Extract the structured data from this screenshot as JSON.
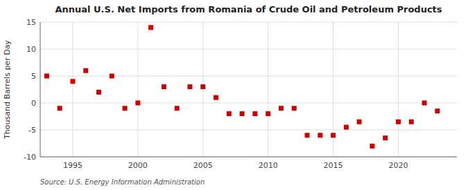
{
  "chart_data": {
    "type": "scatter",
    "title": "Annual U.S. Net Imports from Romania of Crude Oil and Petroleum Products",
    "y_label": "Thousand Barrels per Day",
    "annotations": [
      "Source: U.S. Energy Information Administration"
    ],
    "x": [
      1993,
      1994,
      1995,
      1996,
      1997,
      1998,
      1999,
      2000,
      2001,
      2002,
      2003,
      2004,
      2005,
      2006,
      2007,
      2008,
      2009,
      2010,
      2011,
      2012,
      2013,
      2014,
      2015,
      2016,
      2017,
      2018,
      2019,
      2020,
      2021,
      2022,
      2023
    ],
    "values": [
      5.0,
      -1.0,
      4.0,
      6.0,
      2.0,
      5.0,
      -1.0,
      0.0,
      14.0,
      3.0,
      -1.0,
      3.0,
      3.0,
      1.0,
      -2.0,
      -2.0,
      -2.0,
      -2.0,
      -1.0,
      -1.0,
      -6.0,
      -6.0,
      -6.0,
      -4.5,
      -3.5,
      -8.0,
      -6.5,
      -3.5,
      -3.5,
      0.0,
      -1.5
    ],
    "color": "#cc0000",
    "marker": "square",
    "xlim": [
      1992.5,
      2024.5
    ],
    "xticks": [
      1995,
      2000,
      2005,
      2010,
      2015,
      2020
    ],
    "ylim": [
      -10,
      15
    ],
    "yticks": [
      -10,
      -5,
      0,
      5,
      10,
      15
    ],
    "grid": true
  }
}
